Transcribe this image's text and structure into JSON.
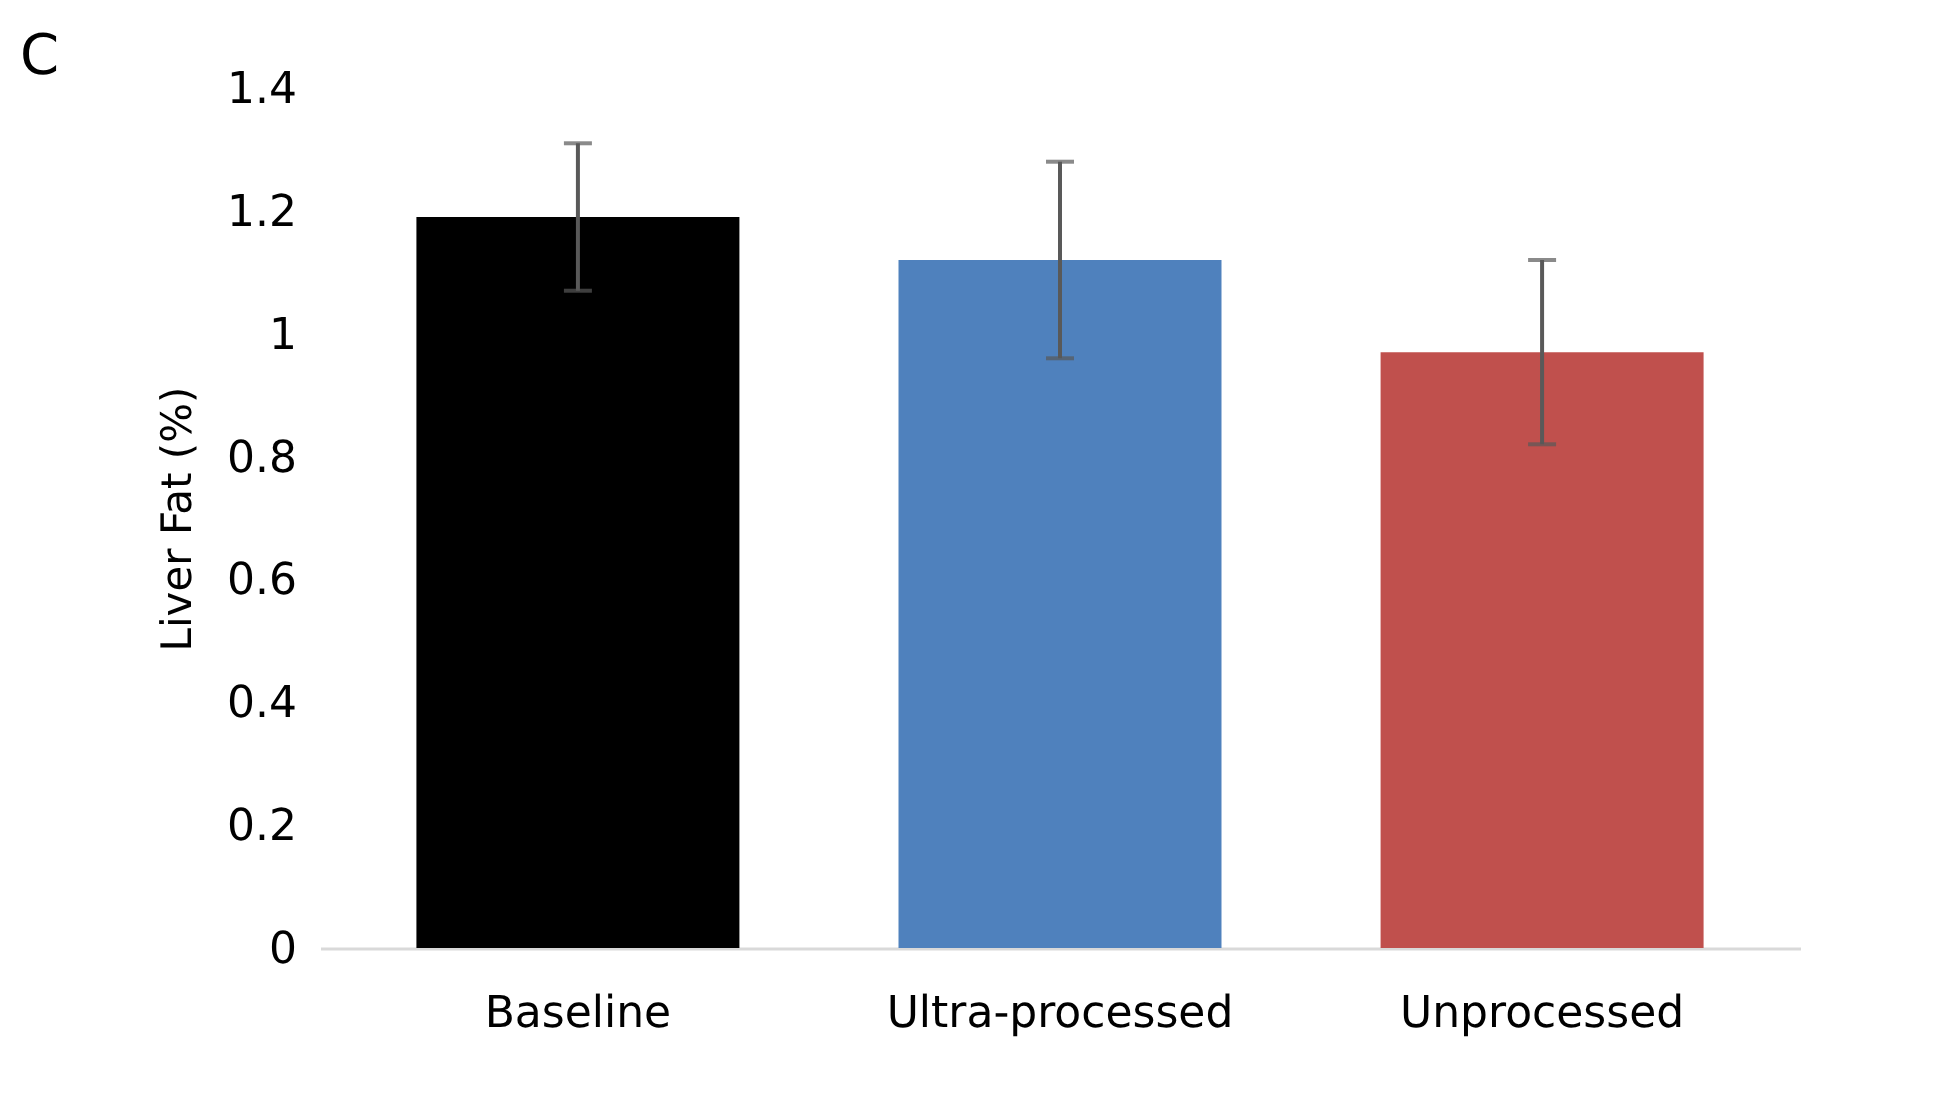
{
  "chart_data": {
    "type": "bar",
    "title": "C",
    "ylabel": "Liver Fat (%)",
    "categories": [
      "Baseline",
      "Ultra-processed",
      "Unprocessed"
    ],
    "values": [
      1.19,
      1.12,
      0.97
    ],
    "colors": [
      "#000000",
      "#4f81bd",
      "#c0504d"
    ],
    "errors": [
      [
        1.07,
        1.31
      ],
      [
        0.96,
        1.28
      ],
      [
        0.82,
        1.12
      ]
    ],
    "ylim": [
      0,
      1.4
    ],
    "yticks": [
      0,
      0.2,
      0.4,
      0.6,
      0.8,
      1,
      1.2,
      1.4
    ],
    "grid": false,
    "legend": false
  }
}
